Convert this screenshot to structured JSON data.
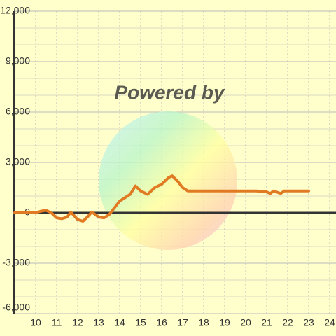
{
  "chart_data": {
    "type": "line",
    "watermark": "Powered by",
    "x": [
      9,
      9.5,
      10,
      10.25,
      10.5,
      10.75,
      11,
      11.25,
      11.5,
      11.67,
      12,
      12.25,
      12.5,
      12.67,
      13,
      13.25,
      13.5,
      13.75,
      14,
      14.5,
      14.75,
      15,
      15.33,
      15.67,
      16,
      16.33,
      16.5,
      16.75,
      17,
      17.25,
      17.5,
      18,
      19,
      20,
      20.5,
      21,
      21.17,
      21.33,
      21.67,
      21.83,
      22,
      23
    ],
    "series": [
      {
        "color": "#e07b24",
        "values": [
          0,
          0,
          0,
          100,
          150,
          0,
          -300,
          -350,
          -250,
          50,
          -400,
          -500,
          -200,
          50,
          -250,
          -300,
          -100,
          300,
          700,
          1100,
          1600,
          1300,
          1100,
          1500,
          1700,
          2100,
          2200,
          1900,
          1500,
          1300,
          1300,
          1300,
          1300,
          1300,
          1300,
          1250,
          1150,
          1300,
          1150,
          1300,
          1300,
          1300
        ]
      }
    ],
    "xlim": [
      9,
      24.3
    ],
    "ylim": [
      -6000,
      12000
    ],
    "xticks": [
      10,
      11,
      12,
      13,
      14,
      15,
      16,
      17,
      18,
      19,
      20,
      21,
      22,
      23,
      24
    ],
    "yticks": [
      {
        "value": -6000,
        "label": "-6,000"
      },
      {
        "value": -3000,
        "label": "-3,000"
      },
      0,
      {
        "value": 3000,
        "label": "3,000"
      },
      {
        "value": 6000,
        "label": "6,000"
      },
      {
        "value": 9000,
        "label": "9,000"
      },
      {
        "value": 12000,
        "label": "12,000"
      }
    ],
    "y_minor_ticks": [
      -5000,
      -4000,
      -2000,
      -1000,
      1000,
      2000,
      4000,
      5000,
      7000,
      8000,
      10000,
      11000
    ],
    "grid": true
  }
}
